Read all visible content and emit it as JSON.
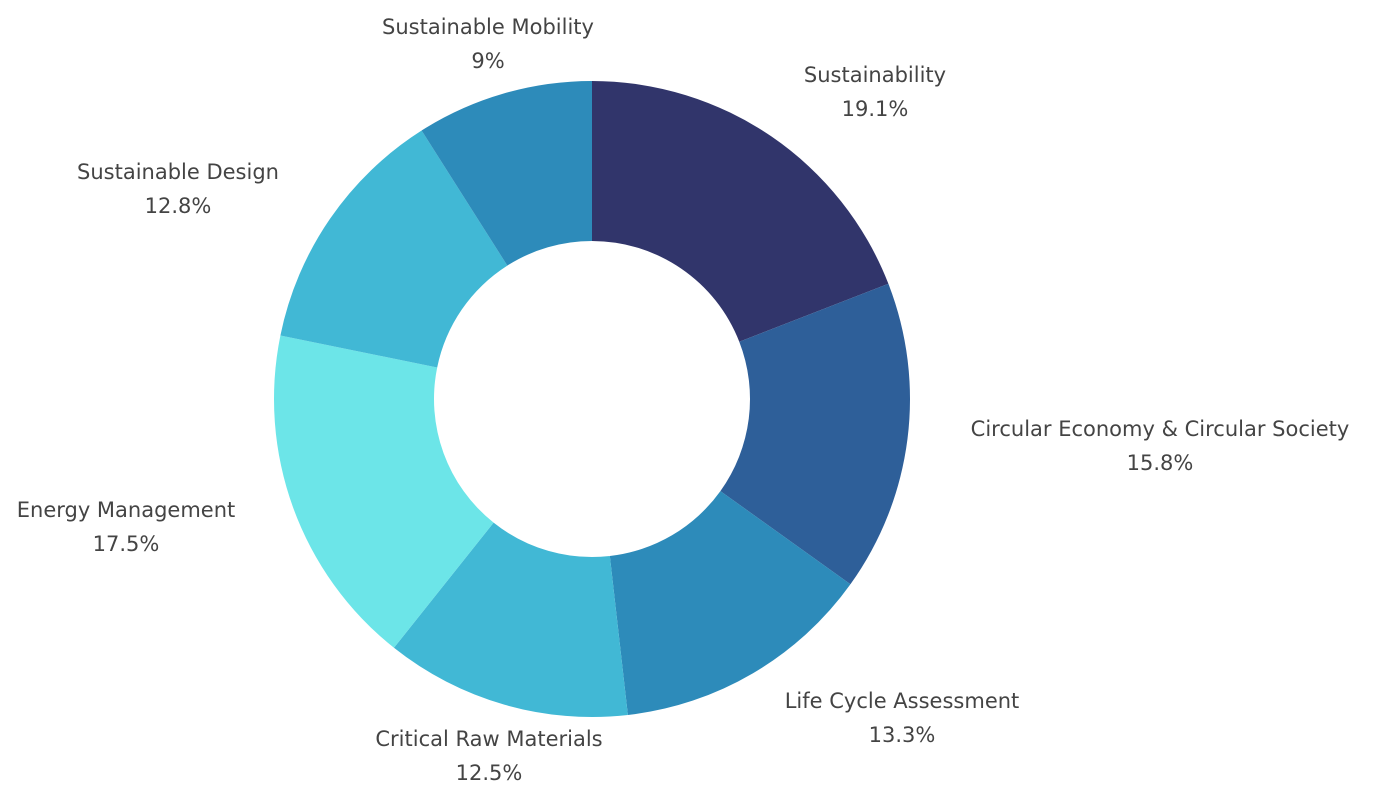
{
  "chart_data": {
    "type": "donut",
    "categories": [
      "Sustainability",
      "Circular Economy & Circular Society",
      "Life Cycle Assessment",
      "Critical Raw Materials",
      "Energy Management",
      "Sustainable Design",
      "Sustainable Mobility"
    ],
    "values": [
      19.1,
      15.8,
      13.3,
      12.5,
      17.5,
      12.8,
      9
    ],
    "value_labels": [
      "19.1%",
      "15.8%",
      "13.3%",
      "12.5%",
      "17.5%",
      "12.8%",
      "9%"
    ],
    "colors": [
      "#31356b",
      "#2e5f99",
      "#2d8bba",
      "#41b8d5",
      "#6ce5e8",
      "#41b8d5",
      "#2d8bba"
    ]
  }
}
